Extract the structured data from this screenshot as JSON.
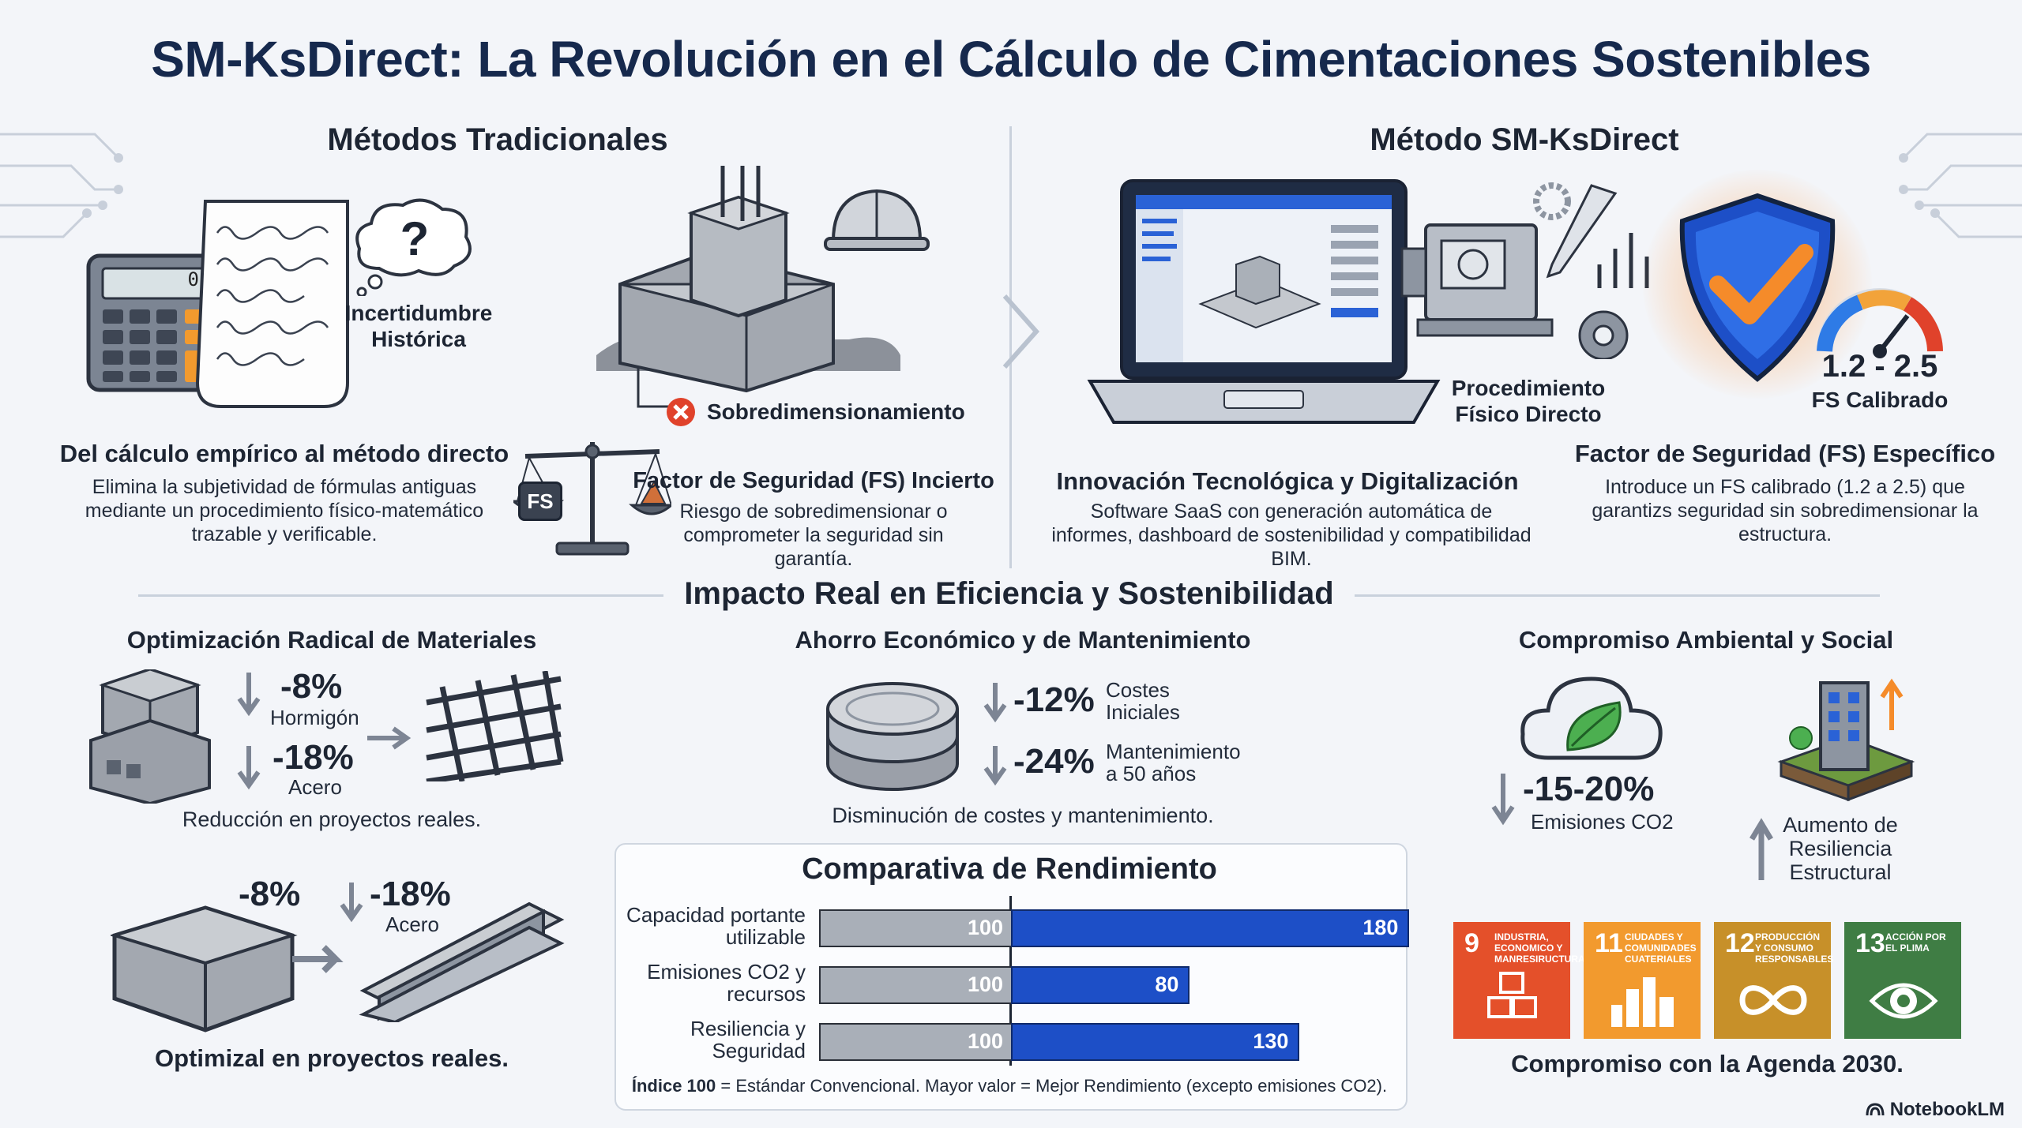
{
  "title": "SM-KsDirect: La Revolución en el Cálculo de Cimentaciones Sostenibles",
  "traditional": {
    "heading": "Métodos Tradicionales",
    "uncertainty": "Incertidumbre Histórica",
    "oversize": "Sobredimensionamiento",
    "calc": "0",
    "fs_badge": "FS",
    "empirical_title": "Del cálculo empírico al método directo",
    "empirical_text": "Elimina la subjetividad de fórmulas antiguas mediante un procedimiento físico-matemático trazable y verificable.",
    "fs_title": "Factor de Seguridad (FS) Incierto",
    "fs_text": "Riesgo de sobredimensionar o comprometer la seguridad sin garantía."
  },
  "smk": {
    "heading": "Método SM-KsDirect",
    "procedure": "Procedimiento Físico Directo",
    "fs_range": "1.2 - 2.5",
    "fs_calibrated": "FS Calibrado",
    "innov_title": "Innovación Tecnológica y Digitalización",
    "innov_text": "Software SaaS con generación automática de informes, dashboard de sostenibilidad y compatibilidad BIM.",
    "fs_title": "Factor de Seguridad (FS) Específico",
    "fs_text": "Introduce un FS calibrado (1.2 a 2.5) que garantizs seguridad sin sobredimensionar la estructura."
  },
  "impact": {
    "heading": "Impacto Real en Eficiencia y Sostenibilidad",
    "materials": {
      "title": "Optimización Radical de Materiales",
      "concrete_pct": "-8%",
      "concrete_lbl": "Hormigón",
      "steel_pct": "-18%",
      "steel_lbl": "Acero",
      "note": "Reducción en proyectos reales.",
      "pct2a": "-8%",
      "pct2b": "-18%",
      "steel_lbl2": "Acero",
      "note2": "Optimizal en proyectos reales."
    },
    "economic": {
      "title": "Ahorro Económico y de Mantenimiento",
      "pct1": "-12%",
      "lbl1": "Costes Iniciales",
      "pct2": "-24%",
      "lbl2": "Mantenimiento a 50 años",
      "note": "Disminución de costes y mantenimiento."
    },
    "env": {
      "title": "Compromiso Ambiental y Social",
      "pct": "-15-20%",
      "lbl": "Emisiones CO2",
      "resil": "Aumento de Resiliencia Estructural",
      "agenda": "Compromiso con la Agenda 2030."
    }
  },
  "sdgs": [
    {
      "num": "9",
      "text": "Industria, economico y manresiructura",
      "color": "#e4502a"
    },
    {
      "num": "11",
      "text": "Ciudades y comunidades cuateriales",
      "color": "#f29a2e"
    },
    {
      "num": "12",
      "text": "Producción y consumo responsables",
      "color": "#c79029"
    },
    {
      "num": "13",
      "text": "Acción por el plima",
      "color": "#3f7d44"
    }
  ],
  "chart_data": {
    "type": "bar",
    "title": "Comparativa de Rendimiento",
    "categories": [
      "Capacidad portante utilizable",
      "Emisiones CO2 y recursos",
      "Resiliencia y Seguridad"
    ],
    "series": [
      {
        "values": [
          100,
          100,
          100
        ],
        "color": "#a9afb8"
      },
      {
        "values": [
          180,
          80,
          130
        ],
        "color": "#1d4fc7"
      }
    ],
    "xlim": [
      0,
      280
    ],
    "footnote_bold": "Índice 100",
    "footnote": " = Estándar Convencional. Mayor valor = Mejor Rendimiento (excepto emisiones CO2)."
  },
  "brand": "NotebookLM"
}
